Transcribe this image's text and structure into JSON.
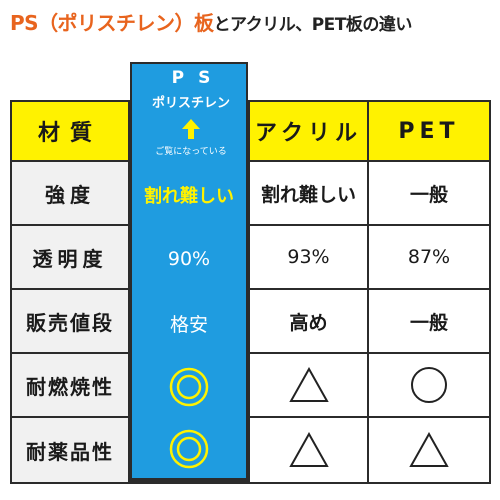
{
  "title": {
    "highlight": "PS（ポリスチレン）板",
    "rest": "とアクリル、PET板の違い"
  },
  "header": {
    "label_col": "材質",
    "ps_line1": "PS",
    "ps_line2": "ポリスチレン",
    "ps_note": "ご覧になっている",
    "acrylic": "アクリル",
    "pet": "PET"
  },
  "rows": [
    {
      "label": "強度",
      "ps": "割れ難しい",
      "acrylic": "割れ難しい",
      "pet": "一般"
    },
    {
      "label": "透明度",
      "ps": "90%",
      "acrylic": "93%",
      "pet": "87%"
    },
    {
      "label": "販売値段",
      "ps": "格安",
      "acrylic": "高め",
      "pet": "一般"
    },
    {
      "label": "耐燃焼性",
      "ps": "double-circle-icon",
      "acrylic": "triangle-icon",
      "pet": "circle-icon"
    },
    {
      "label": "耐薬品性",
      "ps": "double-circle-icon",
      "acrylic": "triangle-icon",
      "pet": "triangle-icon"
    }
  ],
  "colors": {
    "accent_title": "#e8641e",
    "header_yellow": "#fff200",
    "ps_blue": "#1f9ce0",
    "ps_strength_text": "#fff200",
    "symbol_yellow": "#fff200"
  }
}
